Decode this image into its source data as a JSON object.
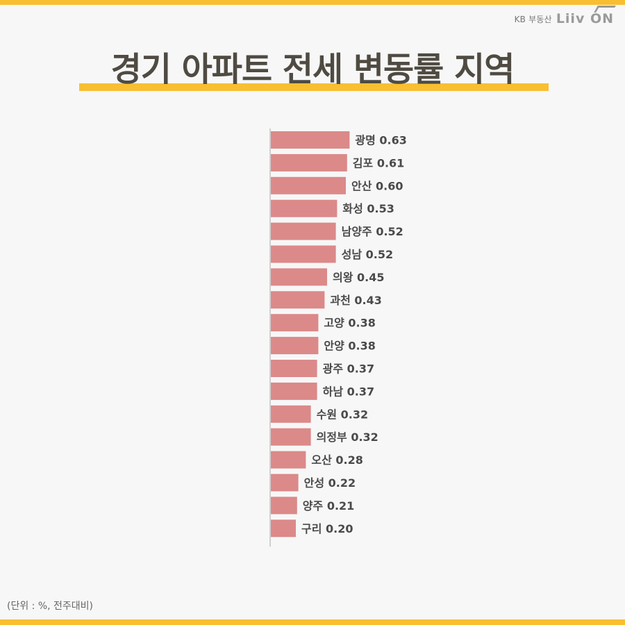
{
  "header": {
    "brand_kb": "KB 부동산",
    "brand_logo": "Liiv ON"
  },
  "title": "경기 아파트 전세 변동률 지역",
  "note": "(단위 : %, 전주대비)",
  "colors": {
    "accent": "#f9bf31",
    "bar": "#dc8989",
    "title": "#4f4b42",
    "label": "#4a4a4a"
  },
  "chart_data": {
    "type": "bar",
    "orientation": "horizontal",
    "categories": [
      "광명",
      "김포",
      "안산",
      "화성",
      "남양주",
      "성남",
      "의왕",
      "과천",
      "고양",
      "안양",
      "광주",
      "하남",
      "수원",
      "의정부",
      "오산",
      "안성",
      "양주",
      "구리"
    ],
    "values": [
      0.63,
      0.61,
      0.6,
      0.53,
      0.52,
      0.52,
      0.45,
      0.43,
      0.38,
      0.38,
      0.37,
      0.37,
      0.32,
      0.32,
      0.28,
      0.22,
      0.21,
      0.2
    ],
    "value_labels": [
      "0.63",
      "0.61",
      "0.60",
      "0.53",
      "0.52",
      "0.52",
      "0.45",
      "0.43",
      "0.38",
      "0.38",
      "0.37",
      "0.37",
      "0.32",
      "0.32",
      "0.28",
      "0.22",
      "0.21",
      "0.20"
    ],
    "unit": "%",
    "xlim": [
      0,
      0.7
    ],
    "grid": false,
    "legend": "none"
  }
}
